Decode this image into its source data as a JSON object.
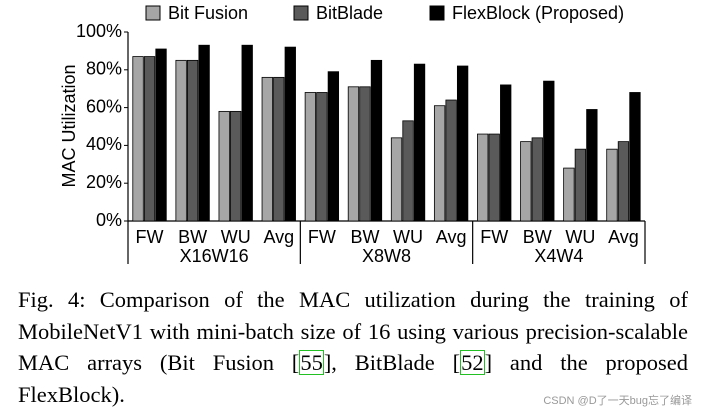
{
  "chart_data": {
    "type": "bar",
    "ylabel": "MAC Utilization",
    "categories": [
      "FW",
      "BW",
      "WU",
      "Avg",
      "FW",
      "BW",
      "WU",
      "Avg",
      "FW",
      "BW",
      "WU",
      "Avg"
    ],
    "group_labels": [
      "X16W16",
      "X8W8",
      "X4W4"
    ],
    "series": [
      {
        "name": "Bit Fusion",
        "color": "#a6a6a6",
        "values": [
          87,
          85,
          58,
          76,
          68,
          71,
          44,
          61,
          46,
          42,
          28,
          38
        ]
      },
      {
        "name": "BitBlade",
        "color": "#5a5a5a",
        "values": [
          87,
          85,
          58,
          76,
          68,
          71,
          53,
          64,
          46,
          44,
          38,
          42
        ]
      },
      {
        "name": "FlexBlock (Proposed)",
        "color": "#000000",
        "values": [
          91,
          93,
          93,
          92,
          79,
          85,
          83,
          82,
          72,
          74,
          59,
          68
        ]
      }
    ],
    "ylim": [
      0,
      100
    ],
    "yticks": [
      {
        "value": 0,
        "label": "0%"
      },
      {
        "value": 20,
        "label": "20%"
      },
      {
        "value": 40,
        "label": "40%"
      },
      {
        "value": 60,
        "label": "60%"
      },
      {
        "value": 80,
        "label": "80%"
      },
      {
        "value": 100,
        "label": "100%"
      }
    ],
    "grid": false,
    "legend": "top"
  },
  "caption": [
    {
      "text": "Fig. 4: Comparison of the MAC utilization during the training of MobileNetV1 with mini-batch size of 16 using various precision-scalable MAC arrays (Bit Fusion ["
    },
    {
      "text": "55",
      "cite": true
    },
    {
      "text": "], BitBlade ["
    },
    {
      "text": "52",
      "cite": true
    },
    {
      "text": "] and the proposed FlexBlock)."
    }
  ],
  "watermark": "CSDN @D了一天bug忘了编译"
}
